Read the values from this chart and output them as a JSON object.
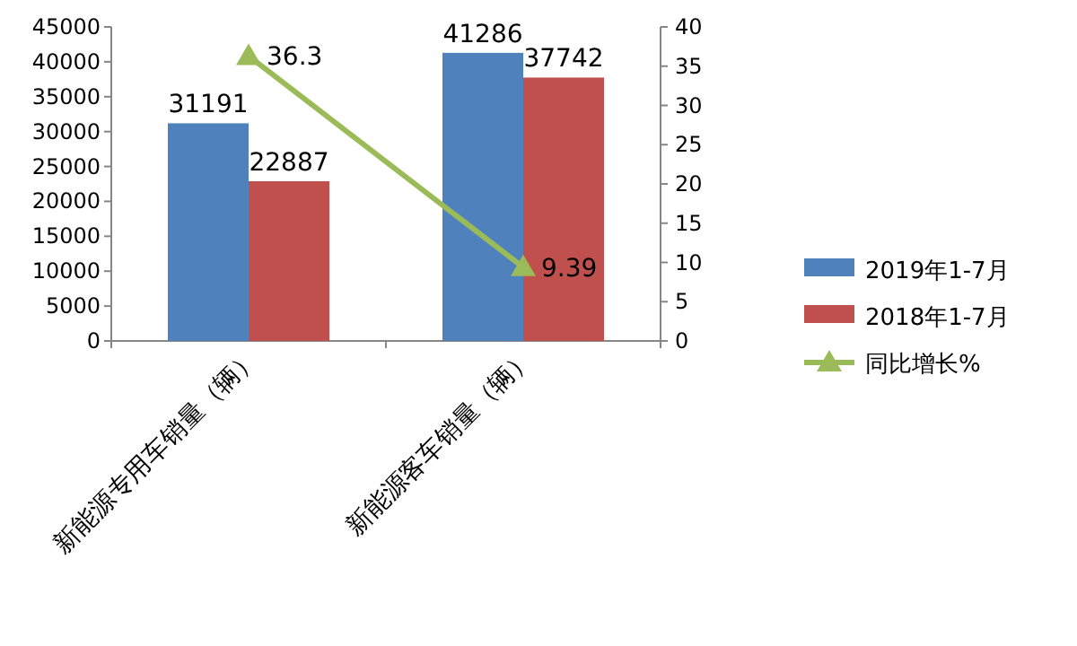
{
  "chart_data": {
    "type": "bar",
    "categories": [
      "新能源专用车销量（辆）",
      "新能源客车销量（辆）"
    ],
    "series": [
      {
        "name": "2019年1-7月",
        "color": "#4f81bd",
        "values": [
          31191,
          41286
        ]
      },
      {
        "name": "2018年1-7月",
        "color": "#c0504d",
        "values": [
          22887,
          37742
        ]
      },
      {
        "name": "同比增长%",
        "color": "#9bbb59",
        "values": [
          36.3,
          9.39
        ],
        "type": "line",
        "axis": "y2",
        "marker": "triangle"
      }
    ],
    "ylim": [
      0,
      45000
    ],
    "yticks": [
      0,
      5000,
      10000,
      15000,
      20000,
      25000,
      30000,
      35000,
      40000,
      45000
    ],
    "y2lim": [
      0,
      40
    ],
    "y2ticks": [
      0,
      5,
      10,
      15,
      20,
      25,
      30,
      35,
      40
    ],
    "data_labels": true,
    "legend": "right",
    "grid": false
  }
}
